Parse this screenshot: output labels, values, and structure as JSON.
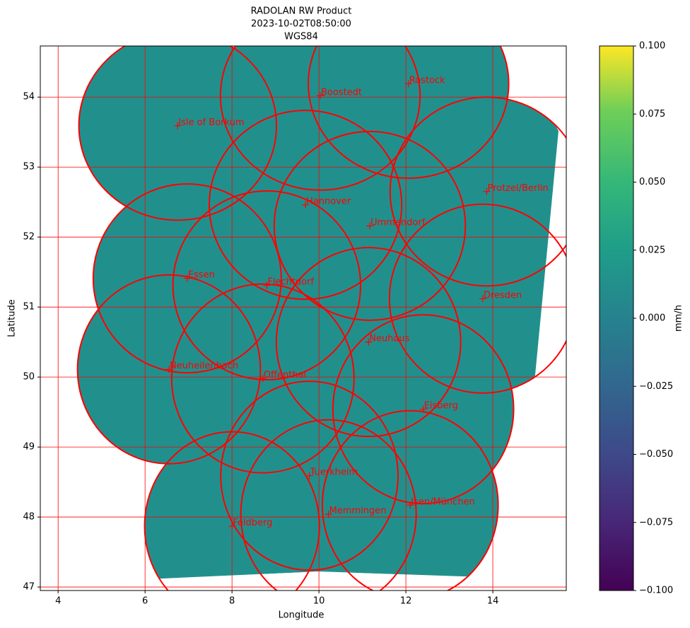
{
  "chart_data": {
    "type": "map",
    "title_lines": [
      "RADOLAN RW Product",
      "2023-10-02T08:50:00",
      "WGS84"
    ],
    "xlabel": "Longitude",
    "ylabel": "Latitude",
    "xlim": [
      3.59,
      15.69
    ],
    "ylim": [
      46.95,
      54.73
    ],
    "xticks": [
      4,
      6,
      8,
      10,
      12,
      14
    ],
    "yticks": [
      47,
      48,
      49,
      50,
      51,
      52,
      53,
      54
    ],
    "grid": true,
    "grid_color": "#ff0000",
    "fill_color": "#21908d",
    "ring_color": "#ff0000",
    "radius_km": 150,
    "stations": [
      {
        "name": "Isle of Borkum",
        "lon": 6.75,
        "lat": 53.59
      },
      {
        "name": "Boostedt",
        "lon": 10.03,
        "lat": 54.02
      },
      {
        "name": "Rostock",
        "lon": 12.06,
        "lat": 54.19
      },
      {
        "name": "Protzel/Berlin",
        "lon": 13.86,
        "lat": 52.65
      },
      {
        "name": "Hannover",
        "lon": 9.69,
        "lat": 52.46
      },
      {
        "name": "Ummendorf",
        "lon": 11.17,
        "lat": 52.16
      },
      {
        "name": "Essen",
        "lon": 6.97,
        "lat": 51.41
      },
      {
        "name": "Flechtdorf",
        "lon": 8.8,
        "lat": 51.31
      },
      {
        "name": "Dresden",
        "lon": 13.77,
        "lat": 51.12
      },
      {
        "name": "Neuhaus",
        "lon": 11.14,
        "lat": 50.5
      },
      {
        "name": "Neuheilenbach",
        "lon": 6.55,
        "lat": 50.11
      },
      {
        "name": "Offenthal",
        "lon": 8.71,
        "lat": 49.98
      },
      {
        "name": "Eisberg",
        "lon": 12.4,
        "lat": 49.54
      },
      {
        "name": "Tuerkheim",
        "lon": 9.78,
        "lat": 48.59
      },
      {
        "name": "Isen/München",
        "lon": 12.1,
        "lat": 48.17
      },
      {
        "name": "Memmingen",
        "lon": 10.22,
        "lat": 48.04
      },
      {
        "name": "Feldberg",
        "lon": 8.0,
        "lat": 47.87
      }
    ],
    "colorbar": {
      "label": "mm/h",
      "lim": [
        -0.1,
        0.1
      ],
      "ticks": [
        {
          "value": -0.1,
          "label": "−0.100"
        },
        {
          "value": -0.075,
          "label": "−0.075"
        },
        {
          "value": -0.05,
          "label": "−0.050"
        },
        {
          "value": -0.025,
          "label": "−0.025"
        },
        {
          "value": 0,
          "label": "0.000"
        },
        {
          "value": 0.025,
          "label": "0.025"
        },
        {
          "value": 0.05,
          "label": "0.050"
        },
        {
          "value": 0.075,
          "label": "0.075"
        },
        {
          "value": 0.1,
          "label": "0.100"
        }
      ]
    }
  }
}
